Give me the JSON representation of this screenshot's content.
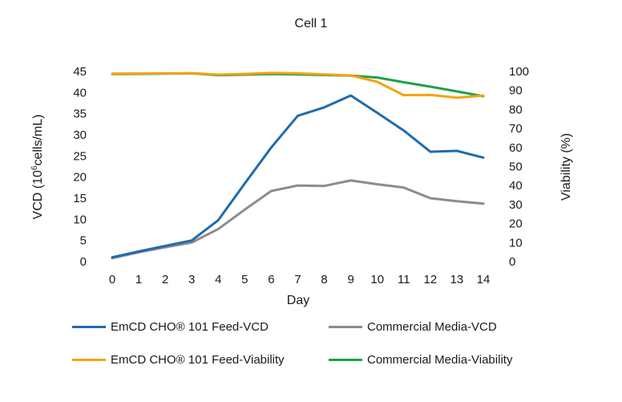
{
  "chart_data": {
    "type": "line",
    "title": "Cell 1",
    "xlabel": "Day",
    "ylabel_left_main": "VCD (10",
    "ylabel_left_sup": "6",
    "ylabel_left_tail": "cells/mL)",
    "ylabel_right": "Viability (%)",
    "x": [
      0,
      1,
      2,
      3,
      4,
      5,
      6,
      7,
      8,
      9,
      10,
      11,
      12,
      13,
      14
    ],
    "y_left_lim": [
      0,
      45
    ],
    "y_left_ticks": [
      0,
      5,
      10,
      15,
      20,
      25,
      30,
      35,
      40,
      45
    ],
    "y_right_lim": [
      0,
      100
    ],
    "y_right_ticks": [
      0,
      10,
      20,
      30,
      40,
      50,
      60,
      70,
      80,
      90,
      100
    ],
    "series": [
      {
        "name": "EmCD CHO® 101 Feed-VCD",
        "axis": "left",
        "color": "#1f6bb0",
        "values": [
          1.0,
          2.4,
          3.7,
          5.0,
          9.8,
          18.5,
          27.0,
          34.5,
          36.5,
          39.3,
          35.2,
          31.0,
          26.0,
          26.2,
          24.6
        ]
      },
      {
        "name": "Commercial Media-VCD",
        "axis": "left",
        "color": "#8c8c8c",
        "values": [
          0.8,
          2.2,
          3.4,
          4.5,
          7.7,
          12.3,
          16.7,
          18.0,
          17.9,
          19.2,
          18.3,
          17.5,
          15.0,
          14.3,
          13.7
        ]
      },
      {
        "name": "EmCD CHO® 101 Feed-Viability",
        "axis": "right",
        "color": "#f2a40f",
        "values": [
          98.8,
          98.9,
          99.0,
          99.1,
          98.3,
          98.7,
          99.2,
          99.0,
          98.4,
          97.9,
          94.5,
          87.5,
          87.7,
          86.2,
          87.3
        ]
      },
      {
        "name": "Commercial Media-Viability",
        "axis": "right",
        "color": "#1fa04b",
        "values": [
          98.6,
          98.7,
          98.8,
          99.0,
          98.0,
          98.3,
          98.6,
          98.4,
          98.1,
          97.8,
          96.8,
          94.3,
          92.0,
          89.5,
          86.9
        ]
      }
    ],
    "legend": "bottom"
  }
}
